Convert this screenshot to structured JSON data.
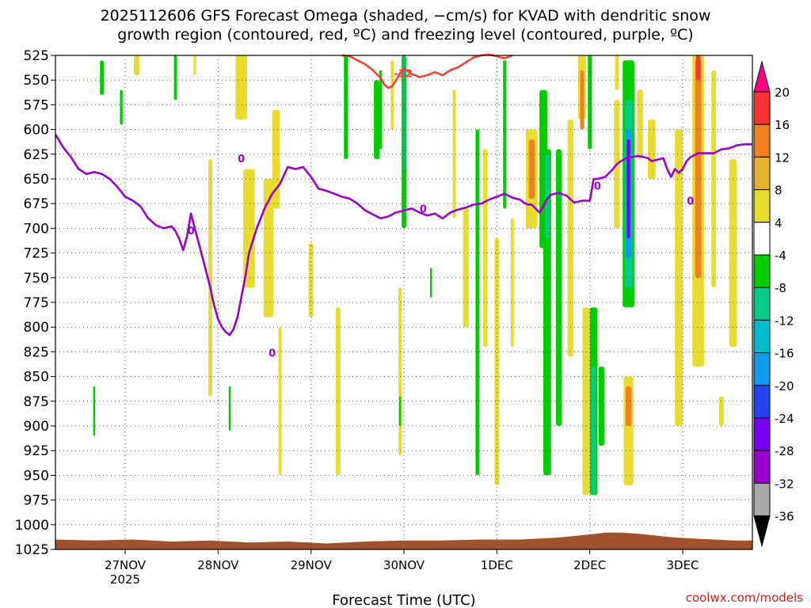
{
  "title_line1": "2025112606 GFS Forecast Omega (shaded, −cm/s) for KVAD with dendritic snow",
  "title_line2": "growth region (contoured, red, ºC) and freezing level (contoured, purple, ºC)",
  "xlabel": "Forecast Time (UTC)",
  "credit": "coolwx.com/models",
  "colors": {
    "freezing_level": "#9900cc",
    "dendritic": "#ee4433",
    "terrain": "#a0522d",
    "grid": "#555555"
  },
  "chart_data": {
    "type": "heatmap",
    "x_unit": "hours since 2025-11-26 06 UTC",
    "xlim": [
      0,
      180
    ],
    "y_unit": "hPa",
    "ylim": [
      1025,
      525
    ],
    "y_ticks": [
      525,
      550,
      575,
      600,
      625,
      650,
      675,
      700,
      725,
      750,
      775,
      800,
      825,
      850,
      875,
      900,
      925,
      950,
      975,
      1000,
      1025
    ],
    "x_ticks": [
      {
        "label": "27NOV",
        "sublabel": "2025",
        "hour": 18
      },
      {
        "label": "28NOV",
        "sublabel": "",
        "hour": 42
      },
      {
        "label": "29NOV",
        "sublabel": "",
        "hour": 66
      },
      {
        "label": "30NOV",
        "sublabel": "",
        "hour": 90
      },
      {
        "label": "1DEC",
        "sublabel": "",
        "hour": 114
      },
      {
        "label": "2DEC",
        "sublabel": "",
        "hour": 138
      },
      {
        "label": "3DEC",
        "sublabel": "",
        "hour": 162
      }
    ],
    "colorbar": {
      "labels": [
        20,
        16,
        12,
        8,
        4,
        -4,
        -8,
        -12,
        -16,
        -20,
        -24,
        -28,
        -32,
        -36
      ],
      "colors": [
        "#ff0080",
        "#ff3333",
        "#f08020",
        "#e8b030",
        "#e8dc30",
        "#ffffff",
        "#00cc00",
        "#00cc88",
        "#00bbcc",
        "#1199ee",
        "#2244ee",
        "#7700ee",
        "#9900cc",
        "#aaaaaa",
        "#000000"
      ]
    },
    "freezing_level_0C": {
      "label": "0",
      "labels_at": [
        [
          35,
          702
        ],
        [
          56,
          826
        ],
        [
          48,
          629
        ],
        [
          95,
          680
        ],
        [
          140,
          657
        ],
        [
          164,
          672
        ]
      ],
      "x": [
        0,
        2,
        4,
        6,
        8,
        10,
        12,
        14,
        16,
        18,
        20,
        22,
        24,
        26,
        28,
        30,
        31,
        32,
        33,
        34,
        35,
        36,
        37,
        38,
        39,
        40,
        40.5,
        41,
        41.5,
        42,
        43,
        44,
        45,
        46,
        47,
        48,
        49,
        50,
        52,
        54,
        56,
        58,
        60,
        62,
        64,
        66,
        68,
        70,
        72,
        74,
        76,
        78,
        80,
        82,
        84,
        86,
        88,
        90,
        92,
        94,
        96,
        98,
        100,
        102,
        104,
        106,
        108,
        110,
        112,
        114,
        116,
        118,
        120,
        121,
        122,
        123,
        124,
        125,
        126,
        127,
        128,
        130,
        132,
        134,
        136,
        138,
        139,
        140,
        141,
        142,
        143,
        144,
        145,
        146,
        147,
        148,
        149,
        150,
        151,
        152,
        153,
        154,
        155,
        156,
        157,
        158,
        159,
        160,
        161,
        162,
        163,
        164,
        165,
        166,
        167,
        168,
        169,
        170,
        172,
        174,
        176,
        178,
        180
      ],
      "y": [
        605,
        618,
        628,
        640,
        645,
        643,
        645,
        650,
        658,
        668,
        672,
        678,
        690,
        697,
        700,
        698,
        703,
        711,
        722,
        708,
        685,
        700,
        715,
        730,
        745,
        760,
        770,
        778,
        785,
        792,
        800,
        805,
        808,
        802,
        790,
        770,
        750,
        725,
        700,
        680,
        665,
        655,
        638,
        640,
        638,
        648,
        660,
        662,
        665,
        668,
        670,
        675,
        682,
        686,
        690,
        688,
        684,
        682,
        680,
        684,
        687,
        685,
        690,
        684,
        681,
        679,
        676,
        675,
        671,
        668,
        665,
        669,
        671,
        674,
        676,
        676,
        680,
        684,
        678,
        670,
        666,
        664,
        667,
        674,
        672,
        672,
        650,
        650,
        649,
        648,
        644,
        640,
        635,
        632,
        630,
        628,
        628,
        627,
        627,
        628,
        629,
        632,
        631,
        630,
        629,
        640,
        648,
        640,
        644,
        640,
        632,
        628,
        626,
        624,
        624,
        624,
        624,
        624,
        620,
        619,
        616,
        615,
        615
      ]
    },
    "dendritic_minus12C": {
      "label": "-12",
      "label_at": [
        89,
        543
      ],
      "x": [
        74,
        76,
        78,
        80,
        82,
        84,
        85,
        86,
        87,
        88,
        89,
        90,
        91,
        92,
        93,
        94,
        96,
        98,
        100,
        102,
        104,
        106,
        108,
        110,
        112,
        114,
        116,
        118
      ],
      "y": [
        525,
        526,
        530,
        534,
        540,
        548,
        555,
        558,
        556,
        550,
        543,
        538,
        541,
        544,
        545,
        547,
        545,
        542,
        545,
        540,
        537,
        532,
        527,
        525,
        524,
        526,
        528,
        525
      ]
    },
    "terrain_pressure_hPa": {
      "x": [
        0,
        10,
        20,
        30,
        40,
        50,
        60,
        70,
        80,
        90,
        100,
        110,
        120,
        130,
        135,
        140,
        142,
        146,
        150,
        155,
        160,
        165,
        170,
        175,
        180
      ],
      "y": [
        1015,
        1016,
        1015,
        1017,
        1016,
        1018,
        1017,
        1019,
        1017,
        1016,
        1016,
        1015,
        1015,
        1013,
        1011,
        1009,
        1008,
        1008,
        1009,
        1011,
        1013,
        1014,
        1015,
        1016,
        1016
      ]
    },
    "omega_cells": [
      {
        "x": 12,
        "y": 530,
        "y2": 565,
        "w": 1.0,
        "color": "#00cc00"
      },
      {
        "x": 17,
        "y": 560,
        "y2": 595,
        "w": 0.7,
        "color": "#00cc00"
      },
      {
        "x": 21,
        "y": 525,
        "y2": 545,
        "w": 1.5,
        "color": "#e8dc30"
      },
      {
        "x": 31,
        "y": 525,
        "y2": 570,
        "w": 0.8,
        "color": "#00cc00"
      },
      {
        "x": 36,
        "y": 525,
        "y2": 545,
        "w": 0.7,
        "color": "#e8dc30"
      },
      {
        "x": 48,
        "y": 525,
        "y2": 590,
        "w": 3.0,
        "color": "#e8dc30"
      },
      {
        "x": 40,
        "y": 630,
        "y2": 870,
        "w": 1.0,
        "color": "#e8dc30"
      },
      {
        "x": 50,
        "y": 640,
        "y2": 760,
        "w": 3.0,
        "color": "#e8dc30"
      },
      {
        "x": 55,
        "y": 650,
        "y2": 790,
        "w": 2.5,
        "color": "#e8dc30"
      },
      {
        "x": 57,
        "y": 580,
        "y2": 680,
        "w": 2.0,
        "color": "#e8dc30"
      },
      {
        "x": 58,
        "y": 800,
        "y2": 950,
        "w": 0.8,
        "color": "#e8dc30"
      },
      {
        "x": 66,
        "y": 715,
        "y2": 790,
        "w": 1.2,
        "color": "#e8dc30"
      },
      {
        "x": 73,
        "y": 780,
        "y2": 950,
        "w": 1.2,
        "color": "#e8dc30"
      },
      {
        "x": 75,
        "y": 525,
        "y2": 630,
        "w": 1.0,
        "color": "#00cc00"
      },
      {
        "x": 83,
        "y": 550,
        "y2": 630,
        "w": 1.5,
        "color": "#00cc00"
      },
      {
        "x": 84,
        "y": 540,
        "y2": 620,
        "w": 0.7,
        "color": "#00cc00"
      },
      {
        "x": 87,
        "y": 530,
        "y2": 600,
        "w": 0.8,
        "color": "#e8dc30"
      },
      {
        "x": 90,
        "y": 525,
        "y2": 700,
        "w": 1.2,
        "color": "#00cc00"
      },
      {
        "x": 90,
        "y": 525,
        "y2": 640,
        "w": 0.4,
        "color": "#00bbcc"
      },
      {
        "x": 89,
        "y": 760,
        "y2": 930,
        "w": 0.8,
        "color": "#e8dc30"
      },
      {
        "x": 97,
        "y": 740,
        "y2": 770,
        "w": 0.5,
        "color": "#00cc00"
      },
      {
        "x": 103,
        "y": 560,
        "y2": 690,
        "w": 0.8,
        "color": "#e8dc30"
      },
      {
        "x": 106,
        "y": 680,
        "y2": 800,
        "w": 1.5,
        "color": "#e8dc30"
      },
      {
        "x": 109,
        "y": 600,
        "y2": 950,
        "w": 1.0,
        "color": "#00cc00"
      },
      {
        "x": 111,
        "y": 620,
        "y2": 820,
        "w": 1.2,
        "color": "#e8dc30"
      },
      {
        "x": 114,
        "y": 710,
        "y2": 960,
        "w": 1.2,
        "color": "#e8dc30"
      },
      {
        "x": 116,
        "y": 530,
        "y2": 680,
        "w": 0.8,
        "color": "#00cc00"
      },
      {
        "x": 118,
        "y": 690,
        "y2": 820,
        "w": 0.8,
        "color": "#e8dc30"
      },
      {
        "x": 123,
        "y": 600,
        "y2": 700,
        "w": 3.0,
        "color": "#e8dc30"
      },
      {
        "x": 123,
        "y": 610,
        "y2": 670,
        "w": 1.5,
        "color": "#f08020"
      },
      {
        "x": 126,
        "y": 560,
        "y2": 720,
        "w": 2.0,
        "color": "#00cc00"
      },
      {
        "x": 127,
        "y": 620,
        "y2": 950,
        "w": 2.0,
        "color": "#00cc00"
      },
      {
        "x": 127,
        "y": 625,
        "y2": 710,
        "w": 1.0,
        "color": "#00cc88"
      },
      {
        "x": 130,
        "y": 620,
        "y2": 900,
        "w": 1.5,
        "color": "#00cc00"
      },
      {
        "x": 133,
        "y": 590,
        "y2": 830,
        "w": 1.5,
        "color": "#e8dc30"
      },
      {
        "x": 136,
        "y": 525,
        "y2": 590,
        "w": 2.0,
        "color": "#e8dc30"
      },
      {
        "x": 136,
        "y": 540,
        "y2": 600,
        "w": 1.0,
        "color": "#f08020"
      },
      {
        "x": 138,
        "y": 525,
        "y2": 620,
        "w": 1.0,
        "color": "#00cc00"
      },
      {
        "x": 137,
        "y": 780,
        "y2": 970,
        "w": 1.8,
        "color": "#e8dc30"
      },
      {
        "x": 139,
        "y": 780,
        "y2": 970,
        "w": 2.0,
        "color": "#00cc00"
      },
      {
        "x": 139,
        "y": 840,
        "y2": 970,
        "w": 1.2,
        "color": "#00cc88"
      },
      {
        "x": 141,
        "y": 840,
        "y2": 920,
        "w": 1.5,
        "color": "#00cc00"
      },
      {
        "x": 145,
        "y": 525,
        "y2": 560,
        "w": 1.0,
        "color": "#e8dc30"
      },
      {
        "x": 145,
        "y": 570,
        "y2": 700,
        "w": 1.5,
        "color": "#e8dc30"
      },
      {
        "x": 148,
        "y": 530,
        "y2": 780,
        "w": 3.0,
        "color": "#00cc00"
      },
      {
        "x": 148,
        "y": 570,
        "y2": 760,
        "w": 2.0,
        "color": "#00cc88"
      },
      {
        "x": 148,
        "y": 600,
        "y2": 730,
        "w": 1.5,
        "color": "#1199ee"
      },
      {
        "x": 148,
        "y": 610,
        "y2": 710,
        "w": 0.8,
        "color": "#7700ee"
      },
      {
        "x": 151,
        "y": 560,
        "y2": 630,
        "w": 1.5,
        "color": "#e8dc30"
      },
      {
        "x": 148,
        "y": 850,
        "y2": 960,
        "w": 2.5,
        "color": "#e8dc30"
      },
      {
        "x": 148,
        "y": 860,
        "y2": 900,
        "w": 1.5,
        "color": "#f08020"
      },
      {
        "x": 154,
        "y": 590,
        "y2": 650,
        "w": 2.0,
        "color": "#e8dc30"
      },
      {
        "x": 161,
        "y": 600,
        "y2": 900,
        "w": 2.0,
        "color": "#e8dc30"
      },
      {
        "x": 166,
        "y": 525,
        "y2": 840,
        "w": 3.0,
        "color": "#e8dc30"
      },
      {
        "x": 166,
        "y": 530,
        "y2": 750,
        "w": 1.6,
        "color": "#f08020"
      },
      {
        "x": 166,
        "y": 525,
        "y2": 550,
        "w": 1.2,
        "color": "#ff3333"
      },
      {
        "x": 170,
        "y": 540,
        "y2": 760,
        "w": 1.2,
        "color": "#e8dc30"
      },
      {
        "x": 172,
        "y": 870,
        "y2": 900,
        "w": 1.2,
        "color": "#e8dc30"
      },
      {
        "x": 175,
        "y": 630,
        "y2": 820,
        "w": 2.0,
        "color": "#e8dc30"
      },
      {
        "x": 45,
        "y": 860,
        "y2": 905,
        "w": 0.5,
        "color": "#00cc00"
      },
      {
        "x": 10,
        "y": 860,
        "y2": 910,
        "w": 0.5,
        "color": "#00cc00"
      },
      {
        "x": 89,
        "y": 870,
        "y2": 900,
        "w": 0.5,
        "color": "#00cc00"
      }
    ]
  }
}
